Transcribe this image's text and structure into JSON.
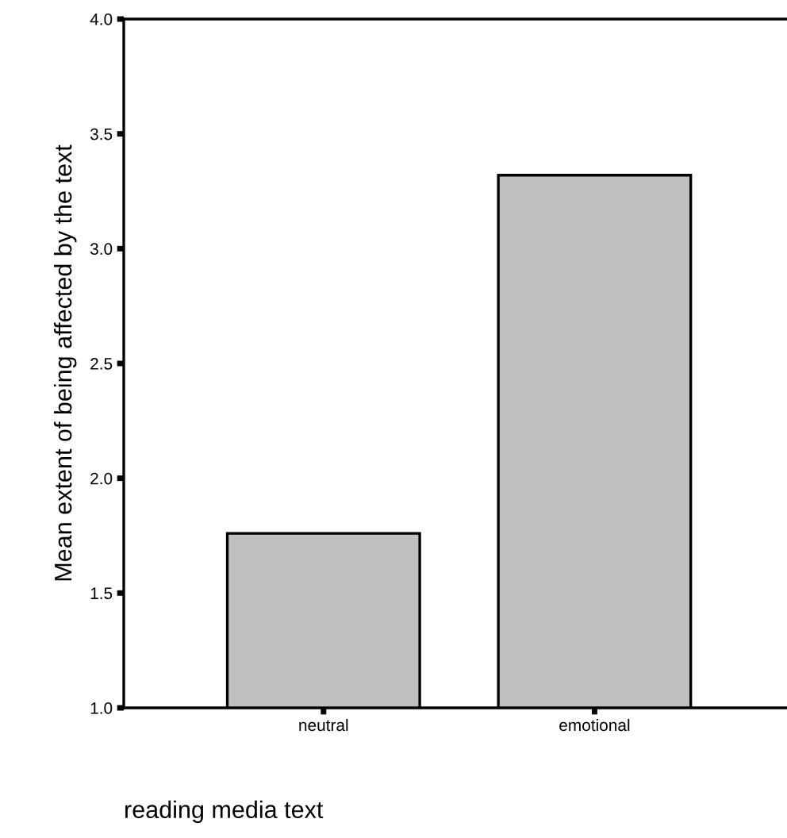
{
  "chart_data": {
    "type": "bar",
    "xlabel": "reading media text",
    "ylabel": "Mean extent of being affected by the text",
    "categories": [
      "neutral",
      "emotional"
    ],
    "values": [
      1.76,
      3.32
    ],
    "color": "#c0c0c0",
    "ylim": [
      1.0,
      4.0
    ],
    "yticks": [
      {
        "value": 1.0,
        "label": "1.0"
      },
      {
        "value": 1.5,
        "label": "1.5"
      },
      {
        "value": 2.0,
        "label": "2.0"
      },
      {
        "value": 2.5,
        "label": "2.5"
      },
      {
        "value": 3.0,
        "label": "3.0"
      },
      {
        "value": 3.5,
        "label": "3.5"
      },
      {
        "value": 4.0,
        "label": "4.0"
      }
    ],
    "grid": false
  }
}
